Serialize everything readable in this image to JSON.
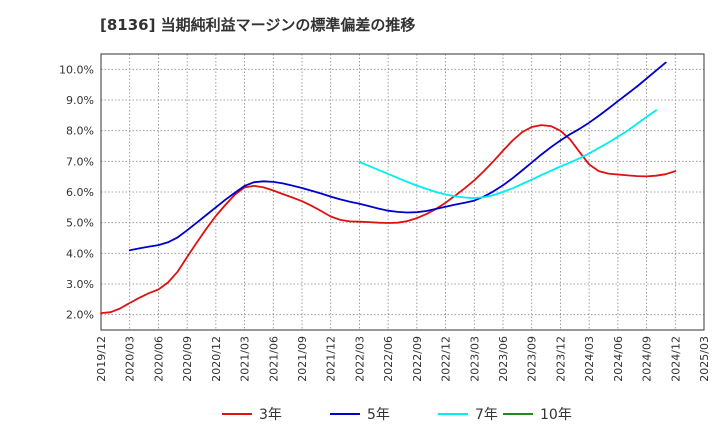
{
  "chart_data": {
    "type": "line",
    "title": "[8136]  当期純利益マージンの標準偏差の推移",
    "xlabel": "",
    "ylabel": "",
    "ylim": [
      1.5,
      10.5
    ],
    "y_ticks": [
      2.0,
      3.0,
      4.0,
      5.0,
      6.0,
      7.0,
      8.0,
      9.0,
      10.0
    ],
    "y_tick_labels": [
      "2.0%",
      "3.0%",
      "4.0%",
      "5.0%",
      "6.0%",
      "7.0%",
      "8.0%",
      "9.0%",
      "10.0%"
    ],
    "x_range": [
      "2019/12",
      "2025/03"
    ],
    "x_tick_labels": [
      "2019/12",
      "2020/03",
      "2020/06",
      "2020/09",
      "2020/12",
      "2021/03",
      "2021/06",
      "2021/09",
      "2021/12",
      "2022/03",
      "2022/06",
      "2022/09",
      "2022/12",
      "2023/03",
      "2023/06",
      "2023/09",
      "2023/12",
      "2024/03",
      "2024/06",
      "2024/09",
      "2024/12",
      "2025/03"
    ],
    "grid": true,
    "legend_position": "bottom",
    "series": [
      {
        "name": "3年",
        "color": "#dd1111",
        "points": [
          [
            "2019/12",
            2.05
          ],
          [
            "2020/01",
            2.08
          ],
          [
            "2020/02",
            2.2
          ],
          [
            "2020/03",
            2.38
          ],
          [
            "2020/04",
            2.55
          ],
          [
            "2020/05",
            2.7
          ],
          [
            "2020/06",
            2.82
          ],
          [
            "2020/07",
            3.05
          ],
          [
            "2020/08",
            3.4
          ],
          [
            "2020/09",
            3.88
          ],
          [
            "2020/10",
            4.35
          ],
          [
            "2020/11",
            4.8
          ],
          [
            "2020/12",
            5.22
          ],
          [
            "2021/01",
            5.58
          ],
          [
            "2021/02",
            5.92
          ],
          [
            "2021/03",
            6.15
          ],
          [
            "2021/04",
            6.2
          ],
          [
            "2021/05",
            6.15
          ],
          [
            "2021/06",
            6.05
          ],
          [
            "2021/07",
            5.93
          ],
          [
            "2021/08",
            5.82
          ],
          [
            "2021/09",
            5.7
          ],
          [
            "2021/10",
            5.55
          ],
          [
            "2021/11",
            5.38
          ],
          [
            "2021/12",
            5.2
          ],
          [
            "2022/01",
            5.09
          ],
          [
            "2022/02",
            5.04
          ],
          [
            "2022/03",
            5.03
          ],
          [
            "2022/04",
            5.02
          ],
          [
            "2022/05",
            5.0
          ],
          [
            "2022/06",
            4.99
          ],
          [
            "2022/07",
            5.0
          ],
          [
            "2022/08",
            5.05
          ],
          [
            "2022/09",
            5.15
          ],
          [
            "2022/10",
            5.28
          ],
          [
            "2022/11",
            5.45
          ],
          [
            "2022/12",
            5.65
          ],
          [
            "2023/01",
            5.88
          ],
          [
            "2023/02",
            6.12
          ],
          [
            "2023/03",
            6.38
          ],
          [
            "2023/04",
            6.68
          ],
          [
            "2023/05",
            7.0
          ],
          [
            "2023/06",
            7.35
          ],
          [
            "2023/07",
            7.68
          ],
          [
            "2023/08",
            7.95
          ],
          [
            "2023/09",
            8.12
          ],
          [
            "2023/10",
            8.18
          ],
          [
            "2023/11",
            8.15
          ],
          [
            "2023/12",
            8.0
          ],
          [
            "2024/01",
            7.72
          ],
          [
            "2024/02",
            7.3
          ],
          [
            "2024/03",
            6.9
          ],
          [
            "2024/04",
            6.68
          ],
          [
            "2024/05",
            6.6
          ],
          [
            "2024/06",
            6.57
          ],
          [
            "2024/07",
            6.54
          ],
          [
            "2024/08",
            6.52
          ],
          [
            "2024/09",
            6.51
          ],
          [
            "2024/10",
            6.53
          ],
          [
            "2024/11",
            6.58
          ],
          [
            "2024/12",
            6.68
          ]
        ]
      },
      {
        "name": "5年",
        "color": "#0000cc",
        "points": [
          [
            "2020/03",
            4.1
          ],
          [
            "2020/04",
            4.16
          ],
          [
            "2020/05",
            4.22
          ],
          [
            "2020/06",
            4.27
          ],
          [
            "2020/07",
            4.36
          ],
          [
            "2020/08",
            4.52
          ],
          [
            "2020/09",
            4.75
          ],
          [
            "2020/10",
            5.0
          ],
          [
            "2020/11",
            5.25
          ],
          [
            "2020/12",
            5.5
          ],
          [
            "2021/01",
            5.75
          ],
          [
            "2021/02",
            5.98
          ],
          [
            "2021/03",
            6.2
          ],
          [
            "2021/04",
            6.32
          ],
          [
            "2021/05",
            6.35
          ],
          [
            "2021/06",
            6.33
          ],
          [
            "2021/07",
            6.28
          ],
          [
            "2021/08",
            6.21
          ],
          [
            "2021/09",
            6.13
          ],
          [
            "2021/10",
            6.04
          ],
          [
            "2021/11",
            5.95
          ],
          [
            "2021/12",
            5.85
          ],
          [
            "2022/01",
            5.76
          ],
          [
            "2022/02",
            5.68
          ],
          [
            "2022/03",
            5.62
          ],
          [
            "2022/04",
            5.54
          ],
          [
            "2022/05",
            5.46
          ],
          [
            "2022/06",
            5.39
          ],
          [
            "2022/07",
            5.35
          ],
          [
            "2022/08",
            5.33
          ],
          [
            "2022/09",
            5.34
          ],
          [
            "2022/10",
            5.38
          ],
          [
            "2022/11",
            5.45
          ],
          [
            "2022/12",
            5.52
          ],
          [
            "2023/01",
            5.59
          ],
          [
            "2023/02",
            5.65
          ],
          [
            "2023/03",
            5.72
          ],
          [
            "2023/04",
            5.85
          ],
          [
            "2023/05",
            6.02
          ],
          [
            "2023/06",
            6.22
          ],
          [
            "2023/07",
            6.45
          ],
          [
            "2023/08",
            6.7
          ],
          [
            "2023/09",
            6.96
          ],
          [
            "2023/10",
            7.22
          ],
          [
            "2023/11",
            7.46
          ],
          [
            "2023/12",
            7.68
          ],
          [
            "2024/01",
            7.88
          ],
          [
            "2024/02",
            8.06
          ],
          [
            "2024/03",
            8.26
          ],
          [
            "2024/04",
            8.48
          ],
          [
            "2024/05",
            8.72
          ],
          [
            "2024/06",
            8.96
          ],
          [
            "2024/07",
            9.2
          ],
          [
            "2024/08",
            9.44
          ],
          [
            "2024/09",
            9.7
          ],
          [
            "2024/10",
            9.96
          ],
          [
            "2024/11",
            10.22
          ]
        ]
      },
      {
        "name": "7年",
        "color": "#00eeee",
        "points": [
          [
            "2022/03",
            6.98
          ],
          [
            "2022/04",
            6.85
          ],
          [
            "2022/05",
            6.72
          ],
          [
            "2022/06",
            6.59
          ],
          [
            "2022/07",
            6.46
          ],
          [
            "2022/08",
            6.33
          ],
          [
            "2022/09",
            6.21
          ],
          [
            "2022/10",
            6.1
          ],
          [
            "2022/11",
            6.0
          ],
          [
            "2022/12",
            5.92
          ],
          [
            "2023/01",
            5.86
          ],
          [
            "2023/02",
            5.82
          ],
          [
            "2023/03",
            5.8
          ],
          [
            "2023/04",
            5.83
          ],
          [
            "2023/05",
            5.9
          ],
          [
            "2023/06",
            6.0
          ],
          [
            "2023/07",
            6.12
          ],
          [
            "2023/08",
            6.26
          ],
          [
            "2023/09",
            6.4
          ],
          [
            "2023/10",
            6.55
          ],
          [
            "2023/11",
            6.69
          ],
          [
            "2023/12",
            6.83
          ],
          [
            "2024/01",
            6.96
          ],
          [
            "2024/02",
            7.1
          ],
          [
            "2024/03",
            7.26
          ],
          [
            "2024/04",
            7.43
          ],
          [
            "2024/05",
            7.61
          ],
          [
            "2024/06",
            7.8
          ],
          [
            "2024/07",
            8.0
          ],
          [
            "2024/08",
            8.22
          ],
          [
            "2024/09",
            8.45
          ],
          [
            "2024/10",
            8.66
          ]
        ]
      },
      {
        "name": "10年",
        "color": "#228822",
        "points": []
      }
    ]
  }
}
